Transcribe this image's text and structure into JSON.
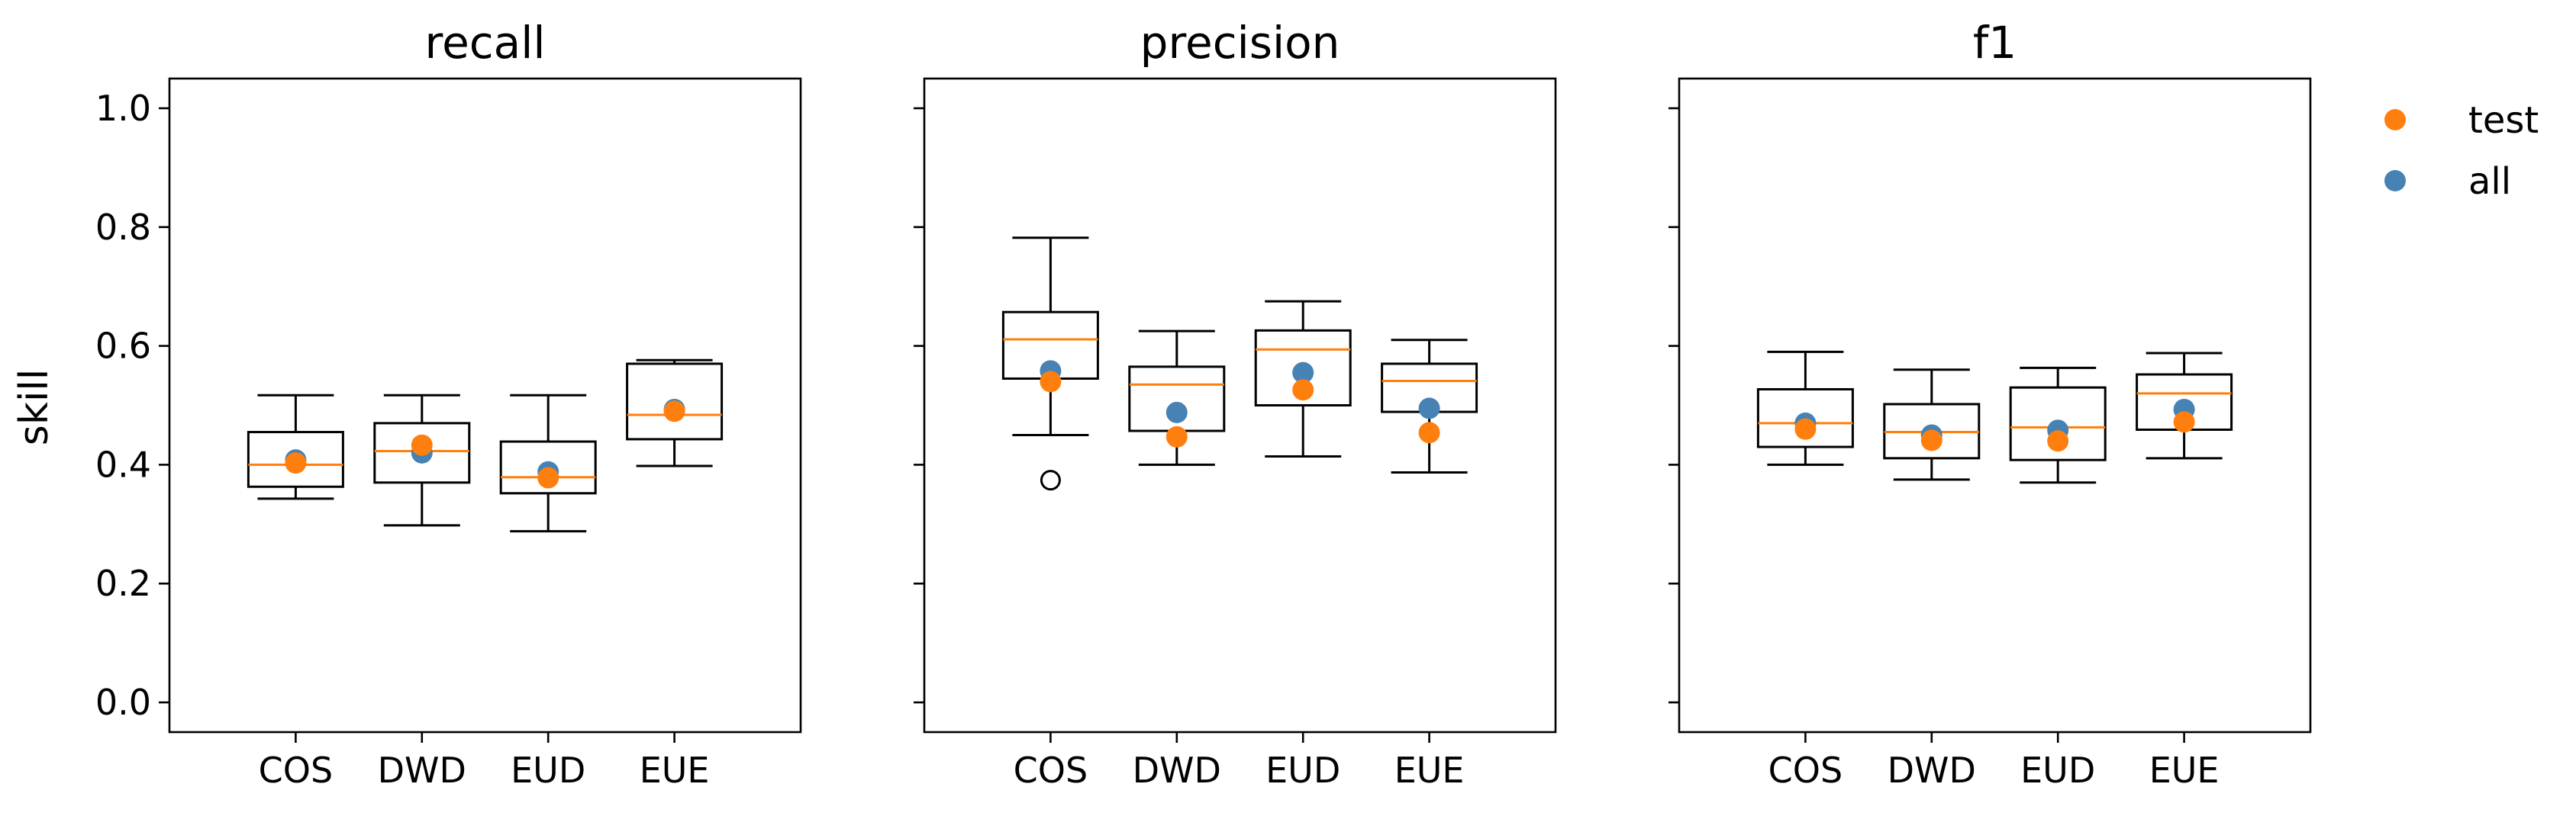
{
  "chart_data": {
    "type": "box",
    "ylabel": "skill",
    "ylim": [
      -0.05,
      1.05
    ],
    "yticks": [
      0.0,
      0.2,
      0.4,
      0.6,
      0.8,
      1.0
    ],
    "ytick_labels": [
      "0.0",
      "0.2",
      "0.4",
      "0.6",
      "0.8",
      "1.0"
    ],
    "sharey": true,
    "categories": [
      "COS",
      "DWD",
      "EUD",
      "EUE"
    ],
    "legend": {
      "placement": "outside-top-right",
      "entries": [
        {
          "label": "test",
          "color": "#ff7f0e"
        },
        {
          "label": "all",
          "color": "#4682b4"
        }
      ]
    },
    "colors": {
      "box": "#000000",
      "median": "#ff7f0e",
      "test": "#ff7f0e",
      "all": "#4682b4"
    },
    "panels": [
      {
        "title": "recall",
        "boxes": [
          {
            "category": "COS",
            "whisker_low": 0.343,
            "q1": 0.363,
            "median": 0.4,
            "q3": 0.455,
            "whisker_high": 0.517,
            "fliers": []
          },
          {
            "category": "DWD",
            "whisker_low": 0.298,
            "q1": 0.37,
            "median": 0.423,
            "q3": 0.47,
            "whisker_high": 0.517,
            "fliers": []
          },
          {
            "category": "EUD",
            "whisker_low": 0.288,
            "q1": 0.352,
            "median": 0.379,
            "q3": 0.439,
            "whisker_high": 0.517,
            "fliers": []
          },
          {
            "category": "EUE",
            "whisker_low": 0.398,
            "q1": 0.443,
            "median": 0.484,
            "q3": 0.57,
            "whisker_high": 0.576,
            "fliers": []
          }
        ],
        "all": [
          0.408,
          0.42,
          0.388,
          0.493
        ],
        "test": [
          0.403,
          0.433,
          0.378,
          0.49
        ]
      },
      {
        "title": "precision",
        "boxes": [
          {
            "category": "COS",
            "whisker_low": 0.45,
            "q1": 0.545,
            "median": 0.611,
            "q3": 0.657,
            "whisker_high": 0.782,
            "fliers": [
              0.374
            ]
          },
          {
            "category": "DWD",
            "whisker_low": 0.4,
            "q1": 0.457,
            "median": 0.535,
            "q3": 0.565,
            "whisker_high": 0.625,
            "fliers": []
          },
          {
            "category": "EUD",
            "whisker_low": 0.414,
            "q1": 0.5,
            "median": 0.594,
            "q3": 0.626,
            "whisker_high": 0.675,
            "fliers": []
          },
          {
            "category": "EUE",
            "whisker_low": 0.387,
            "q1": 0.489,
            "median": 0.541,
            "q3": 0.57,
            "whisker_high": 0.61,
            "fliers": []
          }
        ],
        "all": [
          0.558,
          0.488,
          0.555,
          0.495
        ],
        "test": [
          0.54,
          0.447,
          0.526,
          0.454
        ]
      },
      {
        "title": "f1",
        "boxes": [
          {
            "category": "COS",
            "whisker_low": 0.4,
            "q1": 0.43,
            "median": 0.47,
            "q3": 0.527,
            "whisker_high": 0.59,
            "fliers": []
          },
          {
            "category": "DWD",
            "whisker_low": 0.375,
            "q1": 0.411,
            "median": 0.455,
            "q3": 0.502,
            "whisker_high": 0.56,
            "fliers": []
          },
          {
            "category": "EUD",
            "whisker_low": 0.37,
            "q1": 0.408,
            "median": 0.463,
            "q3": 0.53,
            "whisker_high": 0.563,
            "fliers": []
          },
          {
            "category": "EUE",
            "whisker_low": 0.411,
            "q1": 0.459,
            "median": 0.52,
            "q3": 0.552,
            "whisker_high": 0.588,
            "fliers": []
          }
        ],
        "all": [
          0.47,
          0.45,
          0.458,
          0.493
        ],
        "test": [
          0.46,
          0.441,
          0.44,
          0.472
        ]
      }
    ]
  }
}
